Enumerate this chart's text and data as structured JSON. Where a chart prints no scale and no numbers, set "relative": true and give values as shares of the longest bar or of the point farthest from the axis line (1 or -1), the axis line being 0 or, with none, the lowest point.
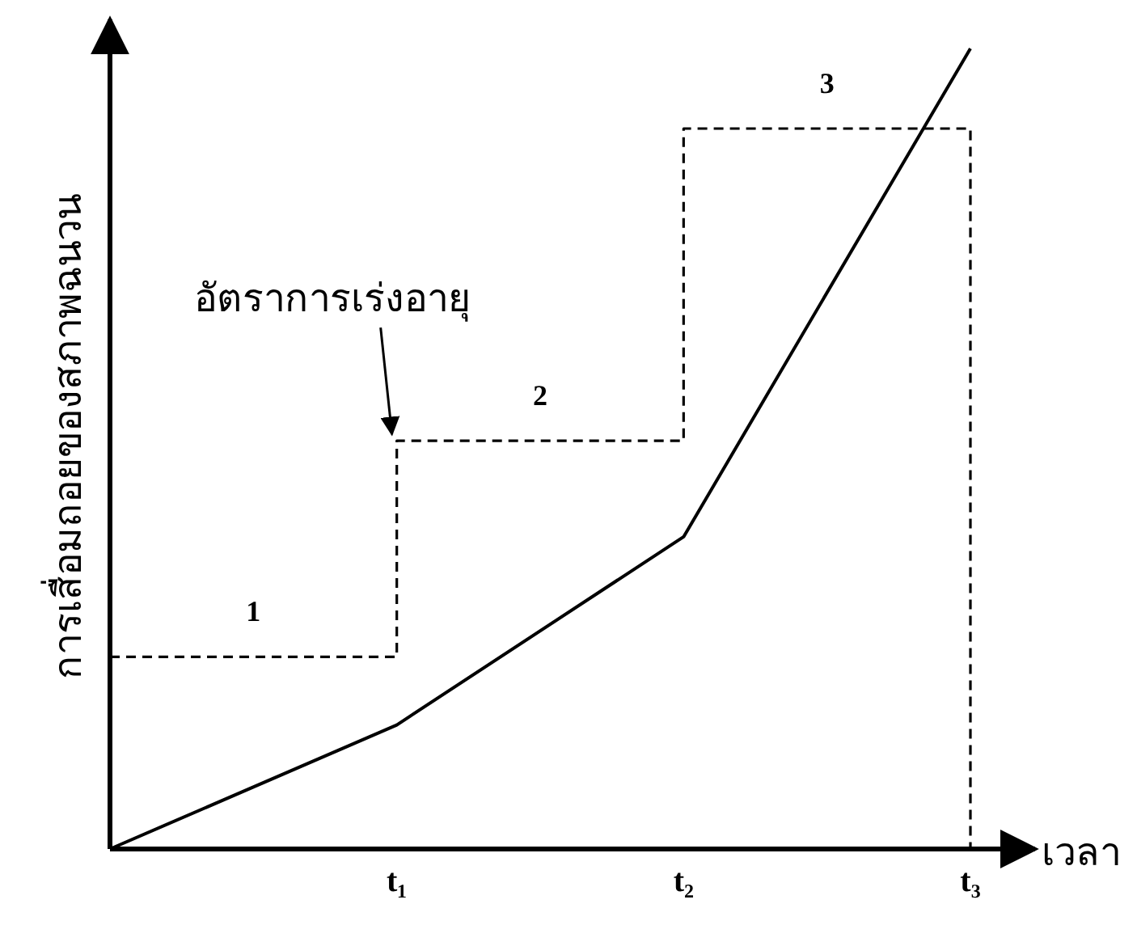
{
  "chart_data": {
    "type": "line",
    "relative": true,
    "xlabel": "เวลา",
    "ylabel": "การเสื่อมถอยของสภาพฉนวน",
    "categories": [
      null,
      "t₁",
      "t₂",
      "t₃"
    ],
    "series": [
      {
        "color": "#000000",
        "line_style": "solid",
        "values": [
          0,
          0.155,
          0.39,
          1
        ]
      },
      {
        "type": "step",
        "color": "#000000",
        "line_style": "dashed",
        "values": [
          0.24,
          0.51,
          0.9,
          0
        ]
      }
    ],
    "annotations": [
      "1",
      "2",
      "3",
      {
        "text": "อัตราการเร่งอายุ",
        "x": "t₁",
        "y": 0.51
      }
    ]
  }
}
